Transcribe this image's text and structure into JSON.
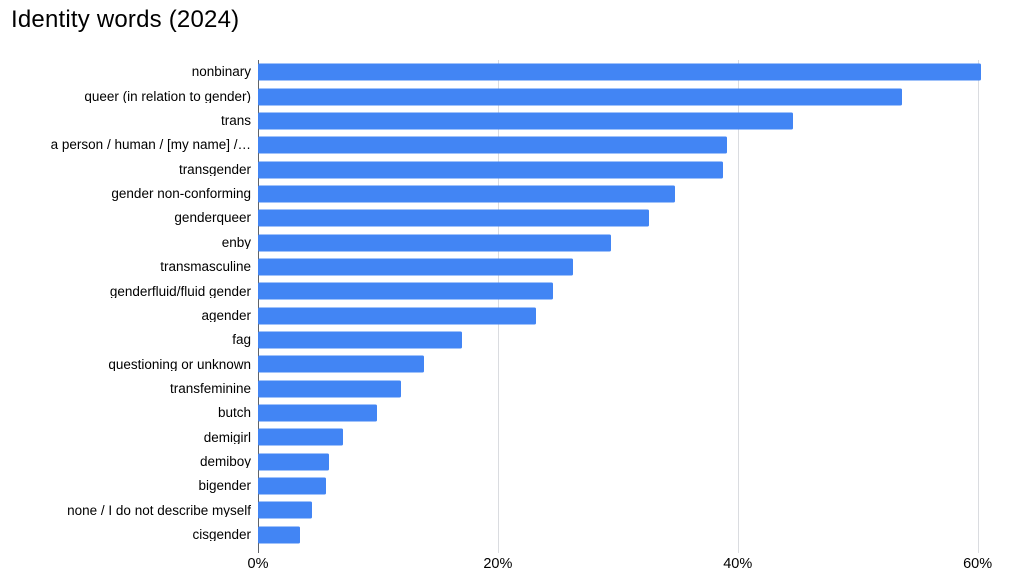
{
  "title": "Identity words (2024)",
  "colors": {
    "bar": "#4285f4",
    "axis_line": "#5f6368",
    "gridline": "#dadce0",
    "text": "#000000"
  },
  "chart_data": {
    "type": "bar",
    "orientation": "horizontal",
    "title": "Identity words (2024)",
    "categories": [
      "nonbinary",
      "queer (in relation to gender)",
      "trans",
      "a person / human / [my name] /…",
      "transgender",
      "gender non-conforming",
      "genderqueer",
      "enby",
      "transmasculine",
      "genderfluid/fluid gender",
      "agender",
      "fag",
      "questioning or unknown",
      "transfeminine",
      "butch",
      "demigirl",
      "demiboy",
      "bigender",
      "none / I do not describe myself",
      "cisgender"
    ],
    "values": [
      60.3,
      53.7,
      44.6,
      39.1,
      38.8,
      34.8,
      32.6,
      29.4,
      26.3,
      24.6,
      23.2,
      17.0,
      13.8,
      11.9,
      9.9,
      7.1,
      5.9,
      5.7,
      4.5,
      3.5
    ],
    "unit": "%",
    "xlabel": "",
    "ylabel": "",
    "xlim": [
      0,
      62.7
    ],
    "xticks": [
      {
        "value": 0,
        "label": "0%"
      },
      {
        "value": 20,
        "label": "20%"
      },
      {
        "value": 40,
        "label": "40%"
      },
      {
        "value": 60,
        "label": "60%"
      }
    ],
    "grid": "vertical",
    "legend": "none"
  }
}
